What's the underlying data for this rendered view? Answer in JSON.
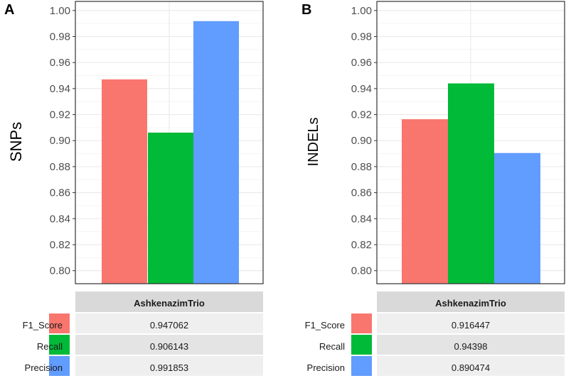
{
  "colors": {
    "f1_score": "#F8766D",
    "recall": "#00BA38",
    "precision": "#619CFF",
    "panel_border": "#333333",
    "grid_major": "#EBEBEB",
    "grid_minor": "#F5F5F5",
    "table_header_bg": "#D9D9D9",
    "table_row_light": "#EFEFEF",
    "table_row_dark": "#E4E4E4",
    "axis_text": "#4D4D4D"
  },
  "chart_data": [
    {
      "type": "bar",
      "panel_label": "A",
      "ylabel": "SNPs",
      "xlabel": "",
      "ylim": [
        0.79,
        1.007
      ],
      "yticks": [
        "0.80",
        "0.82",
        "0.84",
        "0.86",
        "0.88",
        "0.90",
        "0.92",
        "0.94",
        "0.96",
        "0.98",
        "1.00"
      ],
      "categories": [
        "F1_Score",
        "Recall",
        "Precision"
      ],
      "values": [
        0.947062,
        0.906143,
        0.991853
      ],
      "table": {
        "header": "AshkenazimTrio",
        "rows": [
          {
            "label": "F1_Score",
            "value": "0.947062"
          },
          {
            "label": "Recall",
            "value": "0.906143"
          },
          {
            "label": "Precision",
            "value": "0.991853"
          }
        ]
      }
    },
    {
      "type": "bar",
      "panel_label": "B",
      "ylabel": "INDELs",
      "xlabel": "",
      "ylim": [
        0.79,
        1.007
      ],
      "yticks": [
        "0.80",
        "0.82",
        "0.84",
        "0.86",
        "0.88",
        "0.90",
        "0.92",
        "0.94",
        "0.96",
        "0.98",
        "1.00"
      ],
      "categories": [
        "F1_Score",
        "Recall",
        "Precision"
      ],
      "values": [
        0.916447,
        0.94398,
        0.890474
      ],
      "table": {
        "header": "AshkenazimTrio",
        "rows": [
          {
            "label": "F1_Score",
            "value": "0.916447"
          },
          {
            "label": "Recall",
            "value": "0.94398"
          },
          {
            "label": "Precision",
            "value": "0.890474"
          }
        ]
      }
    }
  ]
}
